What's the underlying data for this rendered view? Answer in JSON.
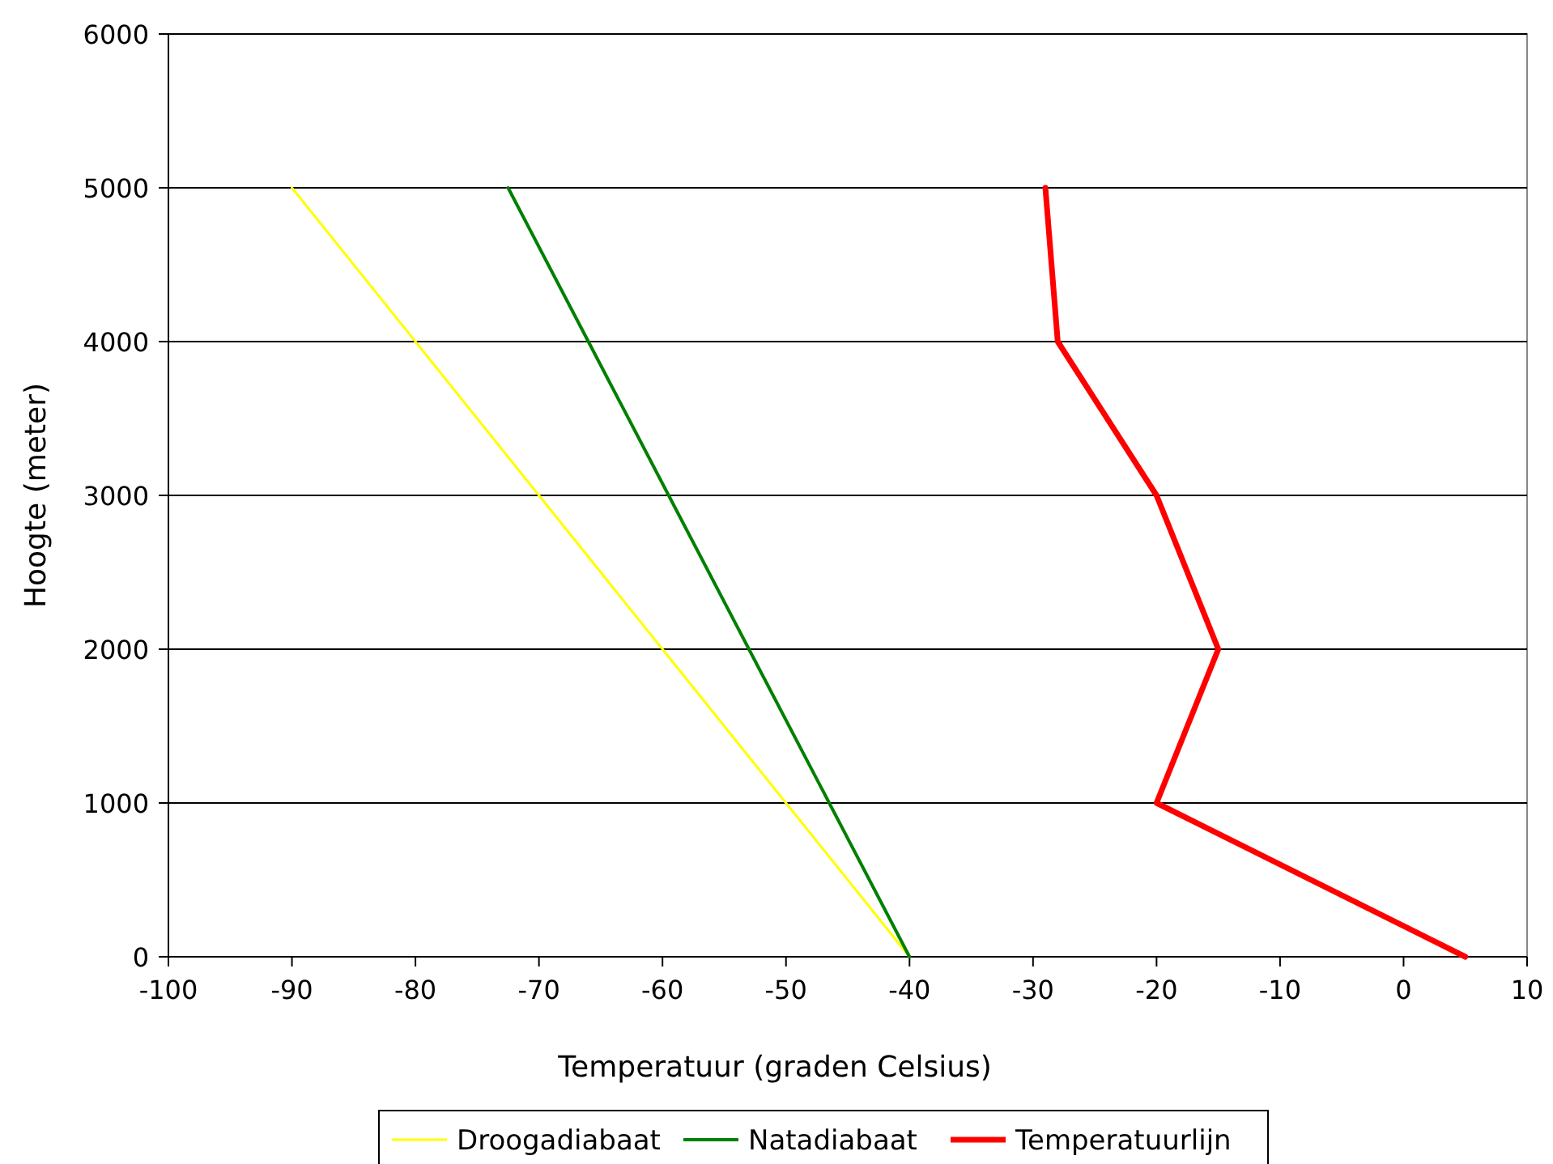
{
  "chart_data": {
    "type": "line",
    "xlabel": "Temperatuur (graden Celsius)",
    "ylabel": "Hoogte (meter)",
    "xlim": [
      -100,
      10
    ],
    "xticks": [
      -100,
      -90,
      -80,
      -70,
      -60,
      -50,
      -40,
      -30,
      -20,
      -10,
      0,
      10
    ],
    "ylim": [
      0,
      6000
    ],
    "yticks": [
      0,
      1000,
      2000,
      3000,
      4000,
      5000,
      6000
    ],
    "grid": "y",
    "legend": "bottom",
    "line_style": "solid",
    "series": [
      {
        "name": "Droogadiabaat",
        "color": "#ffff00",
        "x": [
          -40,
          -50,
          -60,
          -70,
          -80,
          -90
        ],
        "values": [
          0,
          1000,
          2000,
          3000,
          4000,
          5000
        ]
      },
      {
        "name": "Natadiabaat",
        "color": "#008000",
        "x": [
          -40,
          -46.5,
          -53,
          -59.5,
          -66,
          -72.5
        ],
        "values": [
          0,
          1000,
          2000,
          3000,
          4000,
          5000
        ]
      },
      {
        "name": "Temperatuurlijn",
        "color": "#ff0000",
        "x": [
          5,
          -20,
          -15,
          -20,
          -28,
          -29
        ],
        "values": [
          0,
          1000,
          2000,
          3000,
          4000,
          5000
        ]
      }
    ]
  }
}
